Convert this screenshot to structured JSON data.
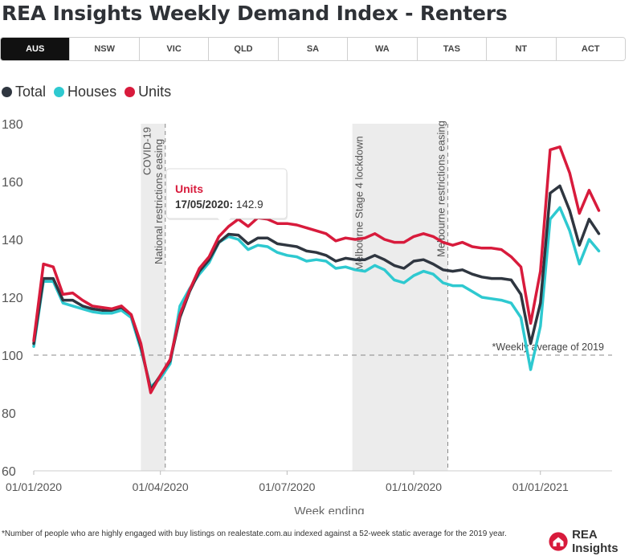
{
  "title": "REA Insights Weekly Demand Index - Renters",
  "tabs": [
    "AUS",
    "NSW",
    "VIC",
    "QLD",
    "SA",
    "WA",
    "TAS",
    "NT",
    "ACT"
  ],
  "active_tab": "AUS",
  "footnote": "*Number of people who are highly engaged with buy listings on realestate.com.au indexed against a 52-week static average for the 2019 year.",
  "brand": "REA Insights",
  "colors": {
    "total": "#2f3640",
    "houses": "#2ec9d0",
    "units": "#d81b3c",
    "shade": "#ececec",
    "grid": "#888888"
  },
  "chart_data": {
    "type": "line",
    "xlabel": "Week ending",
    "ylabel": "",
    "ylim": [
      60,
      180
    ],
    "yticks": [
      60,
      80,
      100,
      120,
      140,
      160,
      180
    ],
    "xticks": [
      {
        "week": 0,
        "label": "01/01/2020"
      },
      {
        "week": 13,
        "label": "01/04/2020"
      },
      {
        "week": 26,
        "label": "01/07/2020"
      },
      {
        "week": 39,
        "label": "01/10/2020"
      },
      {
        "week": 52,
        "label": "01/01/2021"
      }
    ],
    "x": [
      0,
      1,
      2,
      3,
      4,
      5,
      6,
      7,
      8,
      9,
      10,
      11,
      12,
      13,
      14,
      15,
      16,
      17,
      18,
      19,
      20,
      21,
      22,
      23,
      24,
      25,
      26,
      27,
      28,
      29,
      30,
      31,
      32,
      33,
      34,
      35,
      36,
      37,
      38,
      39,
      40,
      41,
      42,
      43,
      44,
      45,
      46,
      47,
      48,
      49,
      50,
      51,
      52,
      53,
      54,
      55,
      56,
      57,
      58
    ],
    "series": [
      {
        "name": "Total",
        "values": [
          104,
          126.5,
          126.5,
          119,
          119,
          117,
          116,
          115.5,
          115.5,
          116.5,
          114,
          103,
          88,
          93,
          98,
          113,
          122,
          129,
          133,
          139,
          141.8,
          141.5,
          138.5,
          140.5,
          140.5,
          138.5,
          138,
          137.5,
          136,
          135.5,
          134.5,
          132.5,
          133.5,
          133,
          133,
          134.5,
          133,
          131,
          130,
          132.5,
          133,
          131.5,
          129.5,
          129,
          129.5,
          128,
          127,
          126.5,
          126.5,
          126,
          121,
          104,
          118,
          156,
          158.5,
          150,
          138,
          147,
          142
        ]
      },
      {
        "name": "Houses",
        "values": [
          103,
          125.5,
          125.5,
          118,
          117,
          116,
          115,
          114.5,
          114.5,
          115.5,
          113,
          102,
          89,
          92,
          97,
          117,
          123,
          128,
          132,
          139,
          141,
          140,
          136.5,
          138,
          137.5,
          135.5,
          134.5,
          134,
          132.5,
          133,
          132.5,
          130,
          130.5,
          129.5,
          129,
          131,
          129.5,
          126,
          125,
          127.5,
          129,
          128,
          125,
          124,
          124,
          122,
          120,
          119.5,
          119,
          118,
          113,
          95,
          110,
          147,
          151,
          143,
          131.5,
          140,
          136
        ]
      },
      {
        "name": "Units",
        "values": [
          105,
          131.5,
          130.5,
          121,
          121.5,
          119,
          117,
          116.5,
          116,
          117,
          114,
          104,
          87,
          93,
          98.5,
          114,
          122.5,
          130,
          134,
          141,
          144.5,
          147,
          144.5,
          147.5,
          147,
          145.5,
          145.5,
          145,
          144,
          143,
          142,
          139.5,
          140.5,
          140,
          140.5,
          142,
          140,
          139,
          139,
          141,
          142,
          141,
          139,
          138,
          139,
          137.5,
          137,
          137,
          136.5,
          134,
          130.5,
          111,
          129,
          171,
          172,
          163,
          149,
          157,
          150
        ]
      }
    ],
    "annotations": [
      {
        "type": "band",
        "from_week": 11,
        "to_week": 13.5
      },
      {
        "type": "band",
        "from_week": 32.7,
        "to_week": 42.5
      },
      {
        "type": "vline",
        "week": 13.5,
        "label": "National restrictions easing"
      },
      {
        "type": "vline",
        "week": 42.5,
        "label": "Melbourne restrictions easing"
      },
      {
        "type": "label",
        "week": 11,
        "label": "COVID-19"
      },
      {
        "type": "label",
        "week": 32.7,
        "label": "Melbourne Stage 4 lockdown"
      },
      {
        "type": "hline",
        "y": 100,
        "label": "*Weekly average of 2019"
      }
    ],
    "tooltip": {
      "series": "Units",
      "date": "17/05/2020:",
      "value": "142.9",
      "week": 19.5
    }
  }
}
